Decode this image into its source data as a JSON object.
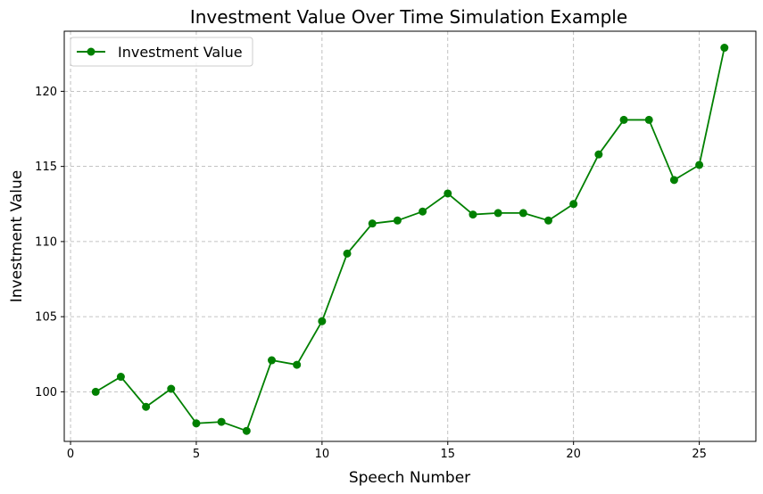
{
  "chart_data": {
    "type": "line",
    "title": "Investment Value Over Time Simulation Example",
    "xlabel": "Speech Number",
    "ylabel": "Investment Value",
    "xlim": [
      -0.25,
      27.25
    ],
    "ylim": [
      96.7,
      124.0
    ],
    "x_ticks": [
      0,
      5,
      10,
      15,
      20,
      25
    ],
    "y_ticks": [
      100,
      105,
      110,
      115,
      120
    ],
    "grid": true,
    "legend_position": "upper-left",
    "color": "#008000",
    "series": [
      {
        "name": "Investment Value",
        "x": [
          1,
          2,
          3,
          4,
          5,
          6,
          7,
          8,
          9,
          10,
          11,
          12,
          13,
          14,
          15,
          16,
          17,
          18,
          19,
          20,
          21,
          22,
          23,
          24,
          25,
          26
        ],
        "y": [
          100.0,
          101.0,
          99.0,
          100.2,
          97.9,
          98.0,
          97.4,
          102.1,
          101.8,
          104.7,
          109.2,
          111.2,
          111.4,
          112.0,
          113.2,
          111.8,
          111.9,
          111.9,
          111.4,
          112.5,
          115.8,
          118.1,
          118.1,
          114.1,
          115.1,
          122.9
        ]
      }
    ]
  }
}
